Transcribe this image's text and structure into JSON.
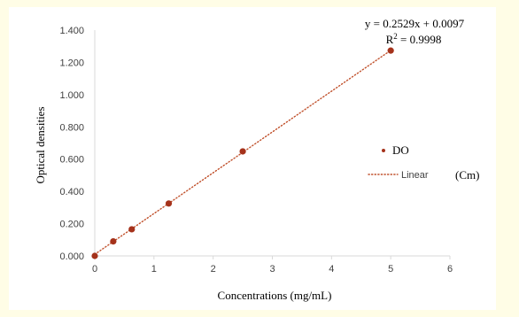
{
  "chart_data": {
    "type": "scatter",
    "title": "",
    "xlabel": "Concentrations (mg/mL)",
    "ylabel": "Optical densities",
    "xlim": [
      0,
      6
    ],
    "ylim": [
      0,
      1.4
    ],
    "x_ticks": [
      "0",
      "1",
      "2",
      "3",
      "4",
      "5",
      "6"
    ],
    "y_ticks": [
      "0.000",
      "0.200",
      "0.400",
      "0.600",
      "0.800",
      "1.000",
      "1.200",
      "1.400"
    ],
    "grid": false,
    "legend_position": "right",
    "series": [
      {
        "name": "DO",
        "color": "#a5321b",
        "x": [
          0,
          0.3125,
          0.625,
          1.25,
          2.5,
          5
        ],
        "y": [
          0.0,
          0.09,
          0.165,
          0.325,
          0.648,
          1.273
        ]
      }
    ],
    "trendline": {
      "type": "linear",
      "style": "dotted",
      "color": "#c0502b",
      "slope": 0.2529,
      "intercept": 0.0097,
      "legend_label": "Linear",
      "legend_suffix": "(Cm)"
    },
    "annotations": {
      "equation": "y = 0.2529x + 0.0097",
      "r_squared_prefix": "R",
      "r_squared_exponent": "2",
      "r_squared_value": " = 0.9998"
    }
  }
}
